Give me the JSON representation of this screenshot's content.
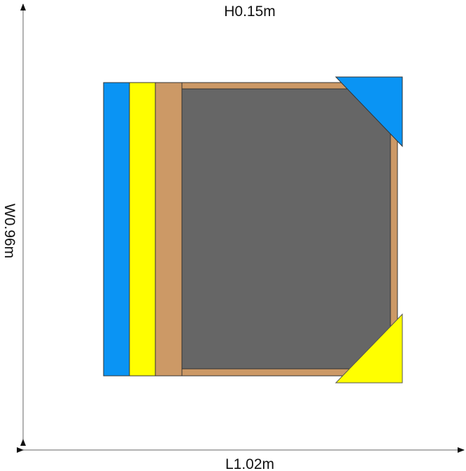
{
  "dimensions": {
    "height_label": "H0.15m",
    "width_label": "W0.96m",
    "length_label": "L1.02m"
  },
  "colors": {
    "blue": "#0a94f4",
    "yellow": "#ffff00",
    "wood": "#cc9966",
    "fill": "#666666",
    "outline": "#333333",
    "arrow": "#999999"
  }
}
